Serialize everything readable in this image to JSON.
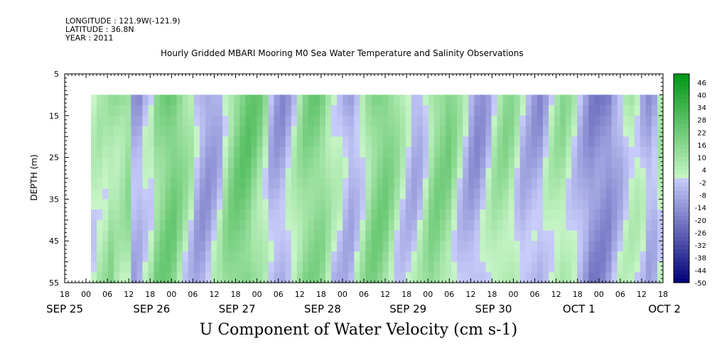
{
  "header": {
    "longitude": "LONGITUDE : 121.9W(-121.9)",
    "latitude": "LATITUDE : 36.8N",
    "year": "YEAR : 2011"
  },
  "chart_data": {
    "type": "heatmap",
    "title": "Hourly Gridded MBARI Mooring M0 Sea Water Temperature and Salinity Observations",
    "xlabel": "U Component of Water Velocity (cm s-1)",
    "ylabel": "DEPTH (m)",
    "ylim": [
      55,
      5
    ],
    "yticks": [
      5,
      15,
      25,
      35,
      45,
      55
    ],
    "xtick_hours": [
      "18",
      "00",
      "06",
      "12",
      "18",
      "00",
      "06",
      "12",
      "18",
      "00",
      "06",
      "12",
      "18",
      "00",
      "06",
      "12",
      "18",
      "00",
      "06",
      "12",
      "18",
      "00",
      "06",
      "12",
      "18",
      "00",
      "06",
      "12",
      "18"
    ],
    "day_labels": [
      "SEP 25",
      "SEP 26",
      "SEP 27",
      "SEP 28",
      "SEP 29",
      "SEP 30",
      "OCT  1",
      "OCT  2"
    ],
    "colorbar": {
      "ticks": [
        46,
        40,
        34,
        28,
        22,
        16,
        10,
        4,
        -2,
        -8,
        -14,
        -20,
        -26,
        -32,
        -38,
        -44,
        -50
      ],
      "range": [
        -50,
        50
      ]
    },
    "data_depth_range": [
      10,
      55
    ],
    "pattern_columns": [
      0,
      3,
      3,
      8,
      12,
      14,
      16,
      -8,
      -12,
      -6,
      -4,
      10,
      16,
      22,
      24,
      20,
      14,
      8,
      -4,
      -10,
      -14,
      -12,
      -8,
      4,
      12,
      18,
      22,
      24,
      22,
      18,
      10,
      -4,
      -10,
      -12,
      -8,
      -2,
      6,
      14,
      18,
      20,
      18,
      12,
      6,
      2,
      -6,
      -12,
      -8,
      -2,
      8,
      16,
      20,
      22,
      18,
      12,
      4,
      -4,
      -10,
      -8,
      0,
      10,
      16,
      18,
      20,
      14,
      6,
      -2,
      -10,
      -14,
      -12,
      -6,
      4,
      10,
      14,
      12,
      6,
      -2,
      -6,
      -10,
      -12,
      -6,
      2,
      8,
      12,
      8,
      4,
      -2,
      -8,
      -14,
      -16,
      -18,
      -20,
      -14,
      -8,
      2,
      8,
      6,
      -4,
      -10,
      -8,
      4
    ]
  }
}
